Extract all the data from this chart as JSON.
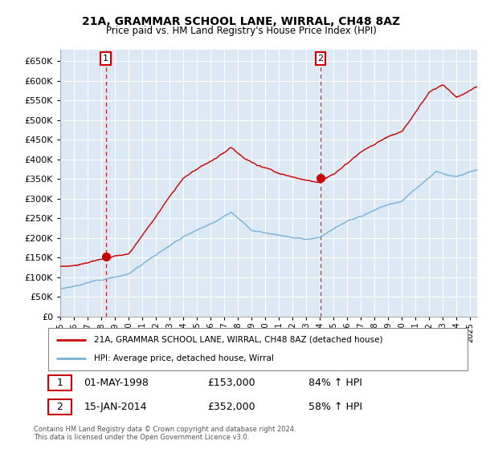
{
  "title": "21A, GRAMMAR SCHOOL LANE, WIRRAL, CH48 8AZ",
  "subtitle": "Price paid vs. HM Land Registry's House Price Index (HPI)",
  "ylim": [
    0,
    680000
  ],
  "yticks": [
    0,
    50000,
    100000,
    150000,
    200000,
    250000,
    300000,
    350000,
    400000,
    450000,
    500000,
    550000,
    600000,
    650000
  ],
  "property_color": "#cc0000",
  "hpi_color": "#7ab0d4",
  "sale1_year": 1998.33,
  "sale1_price": 153000,
  "sale1_label": "1",
  "sale1_date": "01-MAY-1998",
  "sale1_hpi": "84% ↑ HPI",
  "sale2_year": 2014.04,
  "sale2_price": 352000,
  "sale2_label": "2",
  "sale2_date": "15-JAN-2014",
  "sale2_hpi": "58% ↑ HPI",
  "legend_property": "21A, GRAMMAR SCHOOL LANE, WIRRAL, CH48 8AZ (detached house)",
  "legend_hpi": "HPI: Average price, detached house, Wirral",
  "footnote1": "Contains HM Land Registry data © Crown copyright and database right 2024.",
  "footnote2": "This data is licensed under the Open Government Licence v3.0.",
  "background_color": "#ffffff",
  "plot_bg_color": "#dce9f5",
  "grid_color": "#ffffff",
  "xmin": 1995.0,
  "xmax": 2025.5
}
